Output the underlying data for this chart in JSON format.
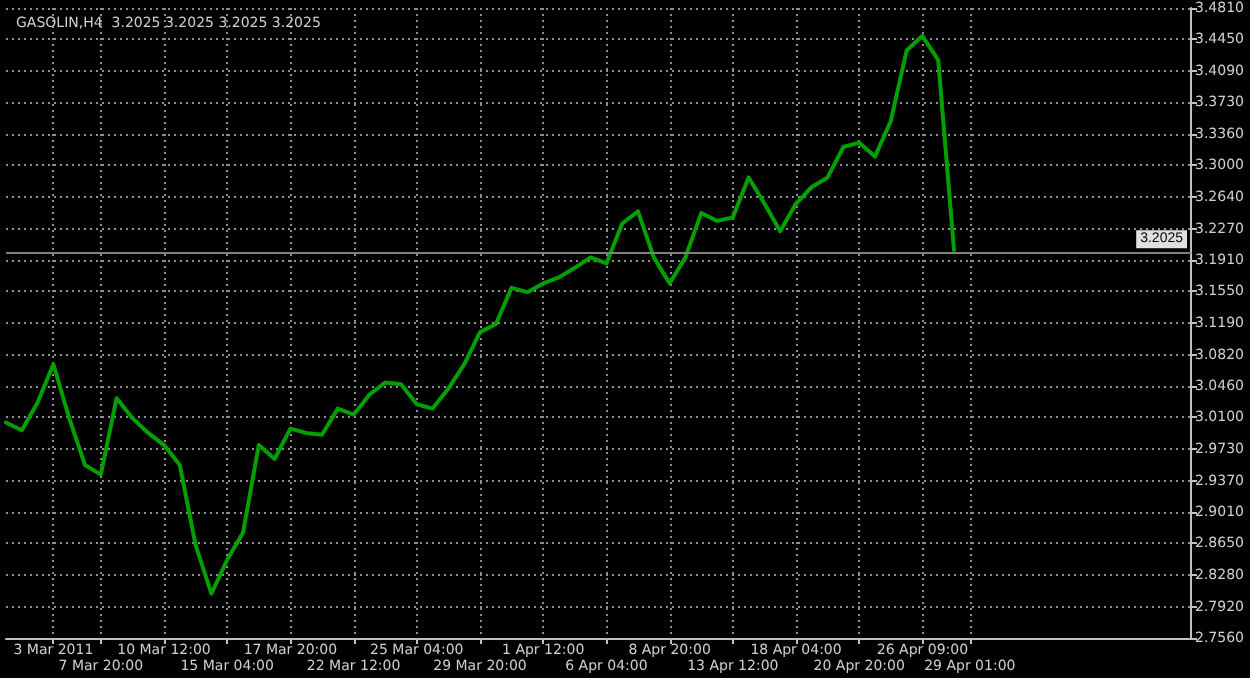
{
  "chart_data": {
    "type": "line",
    "title": "GASOLIN,H4  3.2025 3.2025 3.2025 3.2025",
    "categories": [
      null,
      null,
      null,
      "3 Mar 2011",
      null,
      null,
      "7 Mar 20:00",
      null,
      null,
      null,
      "10 Mar 12:00",
      null,
      null,
      null,
      "15 Mar 04:00",
      null,
      null,
      null,
      "17 Mar 20:00",
      null,
      null,
      null,
      "22 Mar 12:00",
      null,
      null,
      null,
      "25 Mar 04:00",
      null,
      null,
      null,
      "29 Mar 20:00",
      null,
      null,
      null,
      "1 Apr 12:00",
      null,
      null,
      null,
      "6 Apr 04:00",
      null,
      null,
      null,
      "8 Apr 20:00",
      null,
      null,
      null,
      "13 Apr 12:00",
      null,
      null,
      null,
      "18 Apr 04:00",
      null,
      null,
      null,
      "20 Apr 20:00",
      null,
      null,
      null,
      "26 Apr 09:00",
      null,
      null,
      "29 Apr 01:00",
      null,
      null,
      null,
      null,
      null,
      null,
      null,
      null,
      null,
      null,
      null,
      null,
      null,
      null
    ],
    "series": [
      {
        "color": "#00a000",
        "values": [
          3.004,
          2.995,
          3.027,
          3.071,
          3.009,
          2.955,
          2.944,
          3.032,
          3.009,
          2.992,
          2.978,
          2.955,
          2.863,
          2.807,
          2.846,
          2.877,
          2.978,
          2.962,
          2.997,
          2.992,
          2.99,
          3.02,
          3.013,
          3.036,
          3.05,
          3.048,
          3.025,
          3.02,
          3.043,
          3.071,
          3.108,
          3.117,
          3.159,
          3.154,
          3.164,
          3.171,
          3.182,
          3.194,
          3.187,
          3.233,
          3.247,
          3.194,
          3.164,
          3.194,
          3.245,
          3.236,
          3.24,
          3.286,
          3.256,
          3.224,
          3.256,
          3.275,
          3.286,
          3.321,
          3.326,
          3.31,
          3.351,
          3.432,
          3.449,
          3.421,
          3.2025,
          null,
          null,
          null,
          null,
          null,
          null,
          null,
          null,
          null,
          null,
          null,
          null,
          null,
          null,
          null
        ]
      }
    ],
    "ylim": [
      2.756,
      3.481
    ],
    "yticks": [
      {
        "value": 2.756,
        "label": "2.7560"
      },
      {
        "value": 2.792,
        "label": "2.7920"
      },
      {
        "value": 2.828,
        "label": "2.8280"
      },
      {
        "value": 2.865,
        "label": "2.8650"
      },
      {
        "value": 2.901,
        "label": "2.9010"
      },
      {
        "value": 2.937,
        "label": "2.9370"
      },
      {
        "value": 2.973,
        "label": "2.9730"
      },
      {
        "value": 3.01,
        "label": "3.0100"
      },
      {
        "value": 3.046,
        "label": "3.0460"
      },
      {
        "value": 3.082,
        "label": "3.0820"
      },
      {
        "value": 3.119,
        "label": "3.1190"
      },
      {
        "value": 3.155,
        "label": "3.1550"
      },
      {
        "value": 3.191,
        "label": "3.1910"
      },
      {
        "value": 3.227,
        "label": "3.2270"
      },
      {
        "value": 3.264,
        "label": "3.2640"
      },
      {
        "value": 3.3,
        "label": "3.3000"
      },
      {
        "value": 3.336,
        "label": "3.3360"
      },
      {
        "value": 3.373,
        "label": "3.3730"
      },
      {
        "value": 3.409,
        "label": "3.4090"
      },
      {
        "value": 3.445,
        "label": "3.4450"
      },
      {
        "value": 3.481,
        "label": "3.4810"
      }
    ],
    "ref_lines": [
      {
        "axis": "y",
        "value": 3.2025,
        "label": "3.2025",
        "color": "#808080"
      }
    ],
    "grid": true,
    "marker": "none",
    "line_style": "solid"
  }
}
